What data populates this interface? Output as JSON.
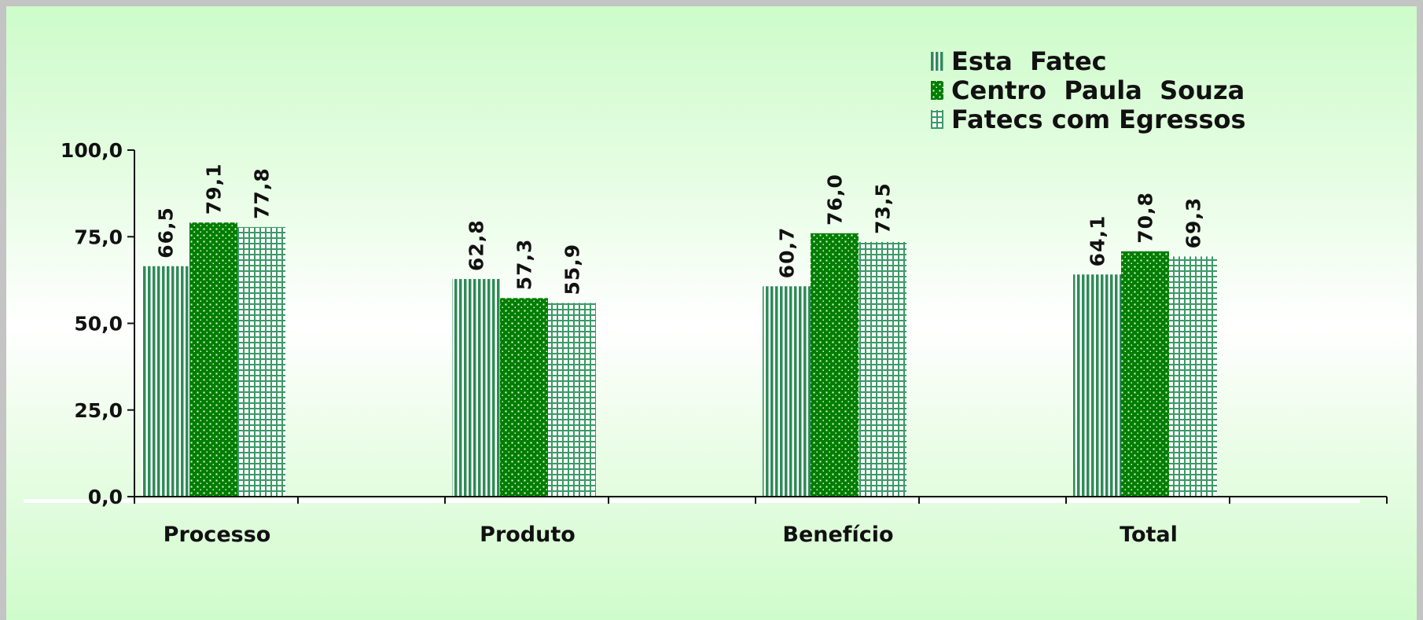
{
  "chart_data": {
    "type": "bar",
    "categories": [
      "Processo",
      "Produto",
      "Benefício",
      "Total"
    ],
    "series": [
      {
        "name": "Esta  Fatec",
        "values": [
          66.5,
          62.8,
          60.7,
          64.1
        ],
        "data_labels": [
          "66,5",
          "62,8",
          "60,7",
          "64,1"
        ],
        "pattern": "vertical-stripes",
        "color": "#2e8b57"
      },
      {
        "name": "Centro  Paula  Souza",
        "values": [
          79.1,
          57.3,
          76.0,
          70.8
        ],
        "data_labels": [
          "79,1",
          "57,3",
          "76,0",
          "70,8"
        ],
        "pattern": "dots",
        "color": "#007d00"
      },
      {
        "name": "Fatecs com Egressos",
        "values": [
          77.8,
          55.9,
          73.5,
          69.3
        ],
        "data_labels": [
          "77,8",
          "55,9",
          "73,5",
          "69,3"
        ],
        "pattern": "grid",
        "color": "#3a9a66"
      }
    ],
    "y_ticks": [
      "0,0",
      "25,0",
      "50,0",
      "75,0",
      "100,0"
    ],
    "ylim": [
      0,
      100
    ],
    "legend_position": "top-right",
    "grid": false,
    "title": "",
    "xlabel": "",
    "ylabel": ""
  }
}
